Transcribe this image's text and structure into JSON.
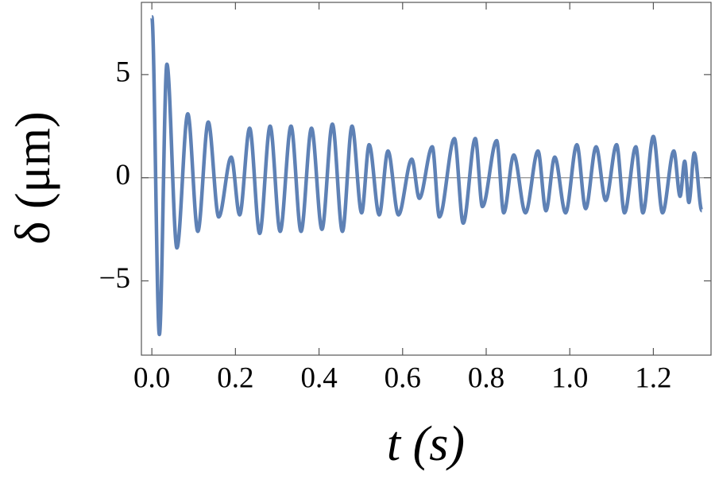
{
  "chart_data": {
    "type": "line",
    "xlabel": "t (s)",
    "ylabel": "δ (μm)",
    "x": [
      0,
      0.018,
      0.036,
      0.06,
      0.086,
      0.11,
      0.135,
      0.16,
      0.19,
      0.21,
      0.234,
      0.258,
      0.283,
      0.307,
      0.333,
      0.357,
      0.382,
      0.407,
      0.432,
      0.456,
      0.479,
      0.502,
      0.52,
      0.544,
      0.565,
      0.59,
      0.622,
      0.64,
      0.671,
      0.688,
      0.724,
      0.745,
      0.774,
      0.791,
      0.825,
      0.842,
      0.866,
      0.894,
      0.924,
      0.943,
      0.964,
      0.99,
      1.017,
      1.038,
      1.063,
      1.086,
      1.112,
      1.131,
      1.158,
      1.175,
      1.2,
      1.222,
      1.249,
      1.264,
      1.275,
      1.285,
      1.298,
      1.316
    ],
    "series": [
      {
        "name": "δ",
        "color": "#5e81b5",
        "values": [
          7.8,
          -7.6,
          5.5,
          -3.4,
          3.1,
          -2.6,
          2.7,
          -1.9,
          1.0,
          -1.8,
          2.4,
          -2.7,
          2.5,
          -2.6,
          2.5,
          -2.6,
          2.4,
          -2.5,
          2.6,
          -2.6,
          2.5,
          -1.7,
          1.6,
          -1.8,
          1.3,
          -1.8,
          0.9,
          -1.0,
          1.5,
          -1.9,
          1.9,
          -2.2,
          1.9,
          -1.4,
          1.8,
          -1.7,
          1.1,
          -1.7,
          1.3,
          -1.6,
          1.0,
          -1.7,
          1.6,
          -1.5,
          1.5,
          -1.1,
          1.6,
          -1.7,
          1.5,
          -1.7,
          2.0,
          -1.7,
          1.3,
          -0.9,
          0.8,
          -1.2,
          1.2,
          -1.6
        ]
      }
    ],
    "xlim": [
      -0.025,
      1.338
    ],
    "ylim": [
      -8.6,
      8.5
    ],
    "xticks": [
      {
        "value": 0,
        "label": "0.0"
      },
      0.2,
      0.4,
      0.6,
      0.8,
      {
        "value": 1,
        "label": "1.0"
      },
      1.2
    ],
    "yticks": [
      {
        "value": -5,
        "label": "−5"
      },
      0,
      5
    ]
  }
}
